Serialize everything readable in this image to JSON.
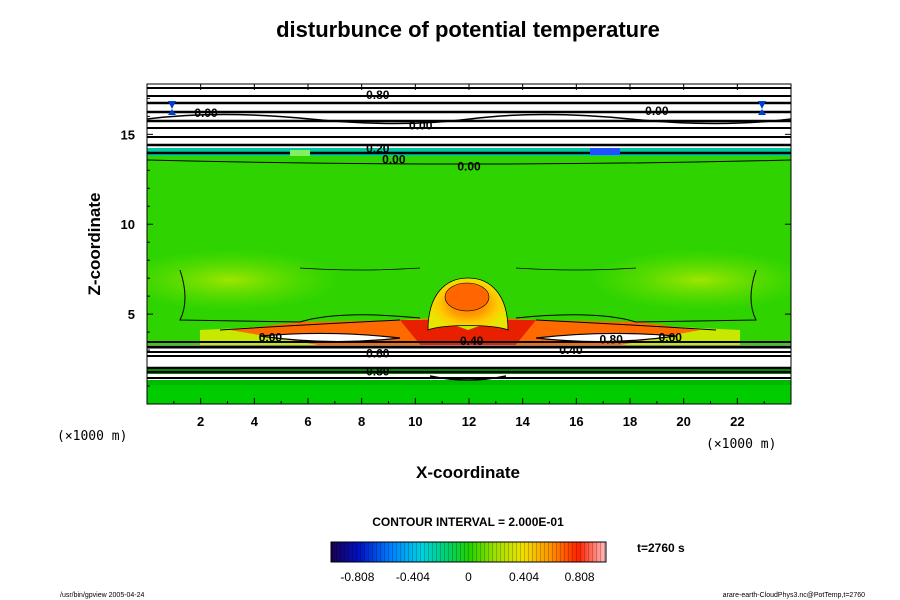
{
  "chart_data": {
    "type": "heatmap",
    "title": "disturbunce of potential temperature",
    "xlabel": "X-coordinate",
    "ylabel": "Z-coordinate",
    "x_unit": "(×1000 m)",
    "z_unit": "(×1000 m)",
    "xlim": [
      0,
      24
    ],
    "ylim": [
      0,
      17.8
    ],
    "x_ticks": [
      "2",
      "4",
      "6",
      "8",
      "10",
      "12",
      "14",
      "16",
      "18",
      "20",
      "22"
    ],
    "x_tick_values": [
      2,
      4,
      6,
      8,
      10,
      12,
      14,
      16,
      18,
      20,
      22
    ],
    "y_ticks": [
      "5",
      "10",
      "15"
    ],
    "y_tick_values": [
      5,
      10,
      15
    ],
    "contour_interval_text": "CONTOUR INTERVAL = 2.000E-01",
    "time_text": "t=2760 s",
    "colorbar": {
      "ticks": [
        "-0.808",
        "-0.404",
        "0",
        "0.404",
        "0.808"
      ],
      "values": [
        -0.808,
        -0.404,
        0,
        0.404,
        0.808
      ],
      "range": [
        -1.0,
        1.0
      ]
    },
    "contour_labels": [
      {
        "text": "0.00",
        "x": 12.0,
        "z": 13.2
      },
      {
        "text": "0.00",
        "x": 9.2,
        "z": 13.6
      },
      {
        "text": "0.40",
        "x": 12.1,
        "z": 3.5
      },
      {
        "text": "0.00",
        "x": 4.6,
        "z": 3.7
      },
      {
        "text": "0.80",
        "x": 17.3,
        "z": 3.6
      },
      {
        "text": "0.00",
        "x": 19.5,
        "z": 3.7
      },
      {
        "text": "0.40",
        "x": 15.8,
        "z": 3.0
      },
      {
        "text": "0.60",
        "x": 8.6,
        "z": 2.8
      },
      {
        "text": "0.80",
        "x": 8.6,
        "z": 1.8
      },
      {
        "text": "0.20",
        "x": 8.6,
        "z": 14.2
      },
      {
        "text": "0.00",
        "x": 2.2,
        "z": 16.2
      },
      {
        "text": "0.00",
        "x": 19.0,
        "z": 16.3
      },
      {
        "text": "0.00",
        "x": 10.2,
        "z": 15.5
      },
      {
        "text": "0.80",
        "x": 8.6,
        "z": 17.2
      }
    ],
    "features": [
      {
        "name": "warm-bubble",
        "x": 12.0,
        "z": 6.0,
        "value": 0.8
      },
      {
        "name": "warm-layer",
        "z": 3.5,
        "value": 0.6
      },
      {
        "name": "surface-bands",
        "z": 1.5
      },
      {
        "name": "upper-bands",
        "z": 16.0
      }
    ]
  },
  "footer": {
    "left": "/usr/bin/gpview 2005-04-24",
    "right": "arare-earth-CloudPhys3.nc@PotTemp,t=2760"
  }
}
